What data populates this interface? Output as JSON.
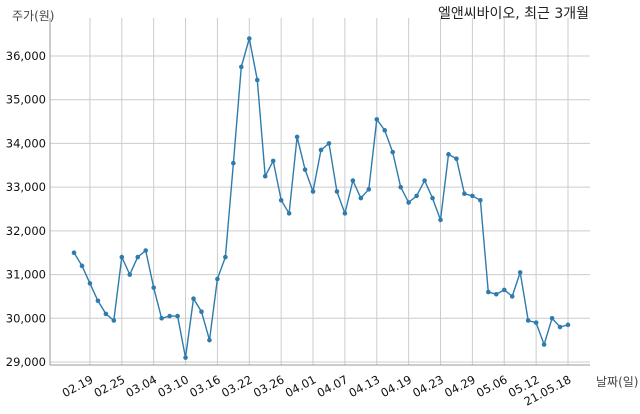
{
  "chart_data": {
    "type": "line",
    "title": "엘앤씨바이오, 최근 3개월",
    "ylabel": "주가(원)",
    "xlabel": "날짜(일)",
    "ylim": [
      28800,
      36700
    ],
    "grid": true,
    "line_color": "#2e7bae",
    "yticks": [
      29000,
      30000,
      31000,
      32000,
      33000,
      34000,
      35000,
      36000
    ],
    "ytick_labels": [
      "29,000",
      "30,000",
      "31,000",
      "32,000",
      "33,000",
      "34,000",
      "35,000",
      "36,000"
    ],
    "x_labels": [
      {
        "label": "02.19",
        "index": 2
      },
      {
        "label": "02.25",
        "index": 6
      },
      {
        "label": "03.04",
        "index": 10
      },
      {
        "label": "03.10",
        "index": 14
      },
      {
        "label": "03.16",
        "index": 18
      },
      {
        "label": "03.22",
        "index": 22
      },
      {
        "label": "03.26",
        "index": 26
      },
      {
        "label": "04.01",
        "index": 30
      },
      {
        "label": "04.07",
        "index": 34
      },
      {
        "label": "04.13",
        "index": 38
      },
      {
        "label": "04.19",
        "index": 42
      },
      {
        "label": "04.23",
        "index": 46
      },
      {
        "label": "04.29",
        "index": 50
      },
      {
        "label": "05.06",
        "index": 54
      },
      {
        "label": "05.12",
        "index": 58
      },
      {
        "label": "21.05.18",
        "index": 62
      }
    ],
    "series": [
      {
        "values": [
          31500,
          31200,
          30800,
          30400,
          30100,
          29950,
          31400,
          31000,
          31400,
          31550,
          30700,
          30000,
          30050,
          30050,
          29100,
          30450,
          30150,
          29500,
          30900,
          31400,
          33550,
          35750,
          36400,
          35450,
          33250,
          33600,
          32700,
          32400,
          34150,
          33400,
          32900,
          33850,
          34000,
          32900,
          32400,
          33150,
          32750,
          32950,
          34550,
          34300,
          33800,
          33000,
          32650,
          32800,
          33150,
          32750,
          32250,
          33750,
          33650,
          32850,
          32800,
          32700,
          30600,
          30550,
          30650,
          30500,
          31050,
          29950,
          29900,
          29400,
          30000,
          29800,
          29850
        ]
      }
    ]
  }
}
